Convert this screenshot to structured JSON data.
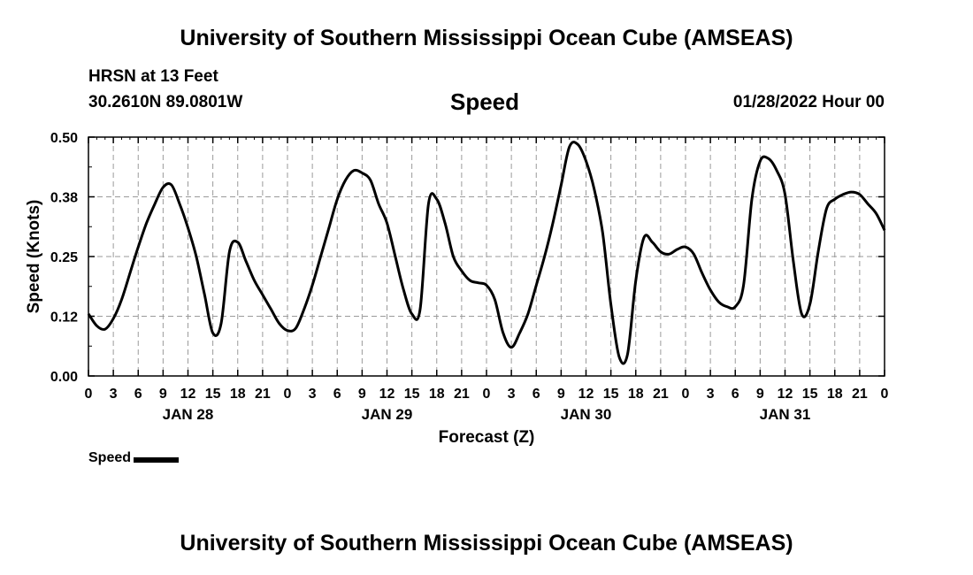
{
  "header": {
    "title": "University of Southern Mississippi Ocean Cube (AMSEAS)",
    "station": "HRSN at 13 Feet",
    "coords": "30.2610N  89.0801W",
    "variable": "Speed",
    "issued": "01/28/2022 Hour 00"
  },
  "footer": {
    "title": "University of Southern Mississippi Ocean Cube (AMSEAS)"
  },
  "chart_data": {
    "type": "line",
    "title": "Speed",
    "xlabel": "Forecast (Z)",
    "ylabel": "Speed (Knots)",
    "ylim": [
      0,
      0.5
    ],
    "xlim": [
      0,
      96
    ],
    "grid": true,
    "y_ticks": [
      0.0,
      0.125,
      0.25,
      0.375,
      0.5
    ],
    "y_tick_labels": [
      "0.00",
      "0.12",
      "0.25",
      "0.38",
      "0.50"
    ],
    "x_ticks": [
      0,
      3,
      6,
      9,
      12,
      15,
      18,
      21,
      24,
      27,
      30,
      33,
      36,
      39,
      42,
      45,
      48,
      51,
      54,
      57,
      60,
      63,
      66,
      69,
      72,
      75,
      78,
      81,
      84,
      87,
      90,
      93,
      96
    ],
    "x_tick_labels": [
      "0",
      "3",
      "6",
      "9",
      "12",
      "15",
      "18",
      "21",
      "0",
      "3",
      "6",
      "9",
      "12",
      "15",
      "18",
      "21",
      "0",
      "3",
      "6",
      "9",
      "12",
      "15",
      "18",
      "21",
      "0",
      "3",
      "6",
      "9",
      "12",
      "15",
      "18",
      "21",
      "0"
    ],
    "date_labels": [
      {
        "label": "JAN 28",
        "hour": 12
      },
      {
        "label": "JAN 29",
        "hour": 36
      },
      {
        "label": "JAN 30",
        "hour": 60
      },
      {
        "label": "JAN 31",
        "hour": 84
      }
    ],
    "legend": [
      {
        "name": "Speed",
        "color": "#000000"
      }
    ],
    "legend_position": "bottom-left",
    "series": [
      {
        "name": "Speed",
        "color": "#000000",
        "x": [
          0,
          1,
          2,
          3,
          4,
          5,
          6,
          7,
          8,
          9,
          10,
          11,
          12,
          13,
          14,
          15,
          16,
          17,
          18,
          19,
          20,
          21,
          22,
          23,
          24,
          25,
          26,
          27,
          28,
          29,
          30,
          31,
          32,
          33,
          34,
          35,
          36,
          37,
          38,
          39,
          40,
          41,
          42,
          43,
          44,
          45,
          46,
          47,
          48,
          49,
          50,
          51,
          52,
          53,
          54,
          55,
          56,
          57,
          58,
          59,
          60,
          61,
          62,
          63,
          64,
          65,
          66,
          67,
          68,
          69,
          70,
          71,
          72,
          73,
          74,
          75,
          76,
          77,
          78,
          79,
          80,
          81,
          82,
          83,
          84,
          85,
          86,
          87,
          88,
          89,
          90,
          91,
          92,
          93,
          94,
          95,
          96
        ],
        "values": [
          0.13,
          0.105,
          0.098,
          0.12,
          0.16,
          0.215,
          0.27,
          0.32,
          0.36,
          0.395,
          0.4,
          0.36,
          0.31,
          0.25,
          0.17,
          0.09,
          0.11,
          0.26,
          0.28,
          0.24,
          0.2,
          0.17,
          0.14,
          0.11,
          0.095,
          0.1,
          0.14,
          0.19,
          0.25,
          0.31,
          0.37,
          0.41,
          0.43,
          0.425,
          0.41,
          0.36,
          0.32,
          0.25,
          0.18,
          0.13,
          0.14,
          0.36,
          0.37,
          0.32,
          0.25,
          0.22,
          0.2,
          0.195,
          0.19,
          0.16,
          0.09,
          0.06,
          0.09,
          0.13,
          0.19,
          0.25,
          0.32,
          0.4,
          0.48,
          0.485,
          0.45,
          0.39,
          0.3,
          0.15,
          0.04,
          0.045,
          0.2,
          0.29,
          0.28,
          0.26,
          0.255,
          0.265,
          0.27,
          0.255,
          0.215,
          0.18,
          0.155,
          0.145,
          0.145,
          0.19,
          0.37,
          0.45,
          0.455,
          0.43,
          0.38,
          0.24,
          0.13,
          0.15,
          0.26,
          0.35,
          0.37,
          0.38,
          0.385,
          0.38,
          0.36,
          0.34,
          0.305
        ]
      }
    ]
  }
}
